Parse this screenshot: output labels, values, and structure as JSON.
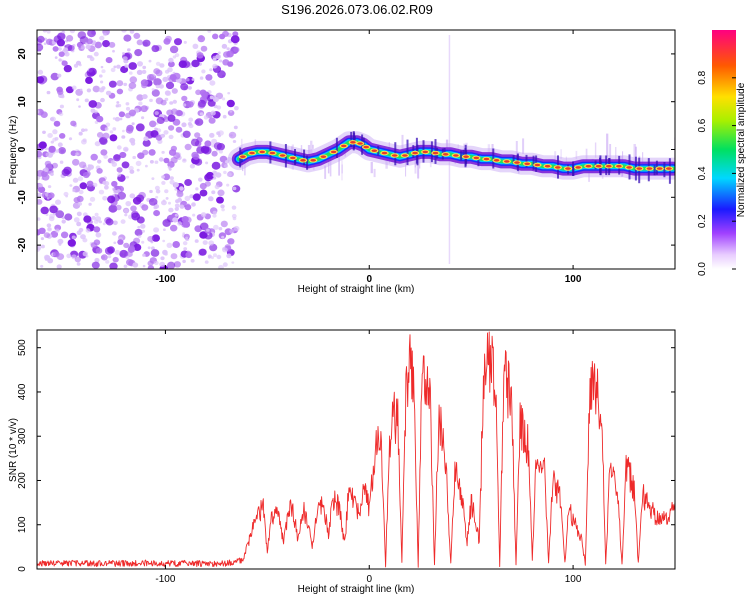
{
  "figure_title": "S196.2026.073.06.02.R09",
  "colors": {
    "snr_line": "#ee2a2a",
    "spectrum_signal": [
      "#7b1fd6",
      "#1a2cff",
      "#00c8ff",
      "#25e05a",
      "#ffe14a",
      "#e83a2a"
    ],
    "noise": "#8a2be2"
  },
  "chart_data": [
    {
      "id": "spectrogram",
      "type": "heatmap",
      "title": "",
      "xlabel": "Height of straight line (km)",
      "ylabel": "Frequency (Hz)",
      "xlim": [
        -163,
        150
      ],
      "ylim": [
        -25,
        25
      ],
      "xticks": [
        -100,
        0,
        100
      ],
      "yticks": [
        -20,
        -10,
        0,
        10,
        20
      ],
      "noise_region_x": [
        -163,
        -65
      ],
      "signal_start_x": -65,
      "signal_track": {
        "x": [
          -64,
          -60,
          -55,
          -50,
          -45,
          -40,
          -35,
          -30,
          -25,
          -20,
          -15,
          -10,
          -6,
          -3,
          0,
          5,
          10,
          15,
          20,
          25,
          30,
          35,
          40,
          45,
          50,
          55,
          60,
          65,
          70,
          75,
          80,
          85,
          90,
          95,
          100,
          105,
          110,
          115,
          120,
          125,
          130,
          135,
          140,
          145,
          149
        ],
        "freq": [
          -2,
          -1,
          -0.5,
          -0.5,
          -1,
          -1.5,
          -2,
          -2.5,
          -2,
          -1,
          0,
          1.5,
          1.5,
          1,
          0,
          -0.5,
          -1,
          -1.5,
          -1,
          -0.5,
          -0.5,
          -1,
          -1,
          -1.5,
          -1.5,
          -2,
          -2,
          -2.5,
          -2.5,
          -3,
          -3,
          -3.5,
          -3.5,
          -4,
          -4,
          -3.5,
          -3.5,
          -3.5,
          -3.5,
          -3.5,
          -4,
          -4,
          -4,
          -4,
          -4
        ]
      },
      "colorbar": {
        "label": "Normalized spectral amplitude",
        "range": [
          0,
          1
        ],
        "ticks": [
          "0.0",
          "0.2",
          "0.4",
          "0.6",
          "0.8"
        ]
      }
    },
    {
      "id": "snr",
      "type": "line",
      "title": "",
      "xlabel": "Height of straight line (km)",
      "ylabel": "SNR (10 * v/v)",
      "xlim": [
        -163,
        150
      ],
      "ylim": [
        0,
        540
      ],
      "xticks": [
        -100,
        0,
        100
      ],
      "yticks": [
        0,
        100,
        200,
        300,
        400,
        500
      ],
      "series": [
        {
          "name": "SNR",
          "x": [
            -163,
            -150,
            -140,
            -130,
            -120,
            -110,
            -100,
            -90,
            -80,
            -70,
            -62,
            -58,
            -55,
            -52,
            -50,
            -48,
            -45,
            -42,
            -40,
            -38,
            -35,
            -32,
            -30,
            -28,
            -25,
            -22,
            -20,
            -18,
            -15,
            -12,
            -10,
            -8,
            -5,
            -3,
            0,
            2,
            4,
            6,
            8,
            10,
            12,
            14,
            16,
            18,
            20,
            22,
            24,
            26,
            28,
            30,
            32,
            34,
            36,
            38,
            40,
            42,
            44,
            46,
            48,
            50,
            52,
            54,
            56,
            58,
            60,
            62,
            64,
            66,
            68,
            70,
            72,
            74,
            76,
            78,
            80,
            82,
            84,
            86,
            88,
            90,
            92,
            94,
            96,
            98,
            100,
            102,
            104,
            106,
            108,
            110,
            112,
            114,
            116,
            118,
            120,
            122,
            124,
            126,
            128,
            130,
            132,
            134,
            136,
            138,
            140,
            142,
            144,
            146,
            148,
            150
          ],
          "values": [
            12,
            14,
            13,
            12,
            13,
            14,
            12,
            13,
            12,
            13,
            20,
            80,
            120,
            140,
            40,
            110,
            130,
            60,
            120,
            140,
            70,
            130,
            100,
            50,
            150,
            130,
            80,
            160,
            140,
            60,
            180,
            160,
            120,
            180,
            140,
            230,
            300,
            260,
            10,
            280,
            350,
            330,
            15,
            400,
            480,
            420,
            10,
            470,
            430,
            360,
            8,
            330,
            300,
            200,
            10,
            230,
            180,
            140,
            60,
            150,
            120,
            60,
            420,
            500,
            470,
            430,
            10,
            440,
            410,
            360,
            12,
            330,
            300,
            280,
            20,
            260,
            240,
            220,
            15,
            200,
            180,
            160,
            10,
            140,
            110,
            90,
            70,
            10,
            380,
            440,
            400,
            360,
            10,
            220,
            200,
            160,
            10,
            230,
            210,
            180,
            10,
            170,
            150,
            140,
            120,
            110,
            110,
            120,
            130,
            150
          ]
        }
      ]
    }
  ]
}
